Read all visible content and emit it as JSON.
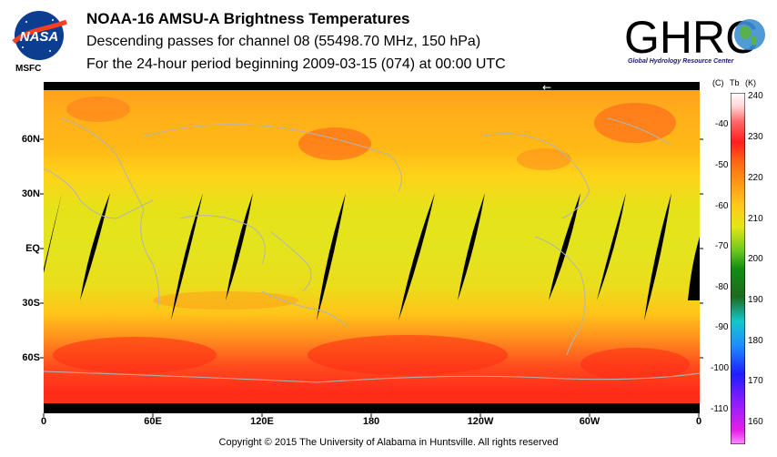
{
  "header": {
    "title": "NOAA-16 AMSU-A Brightness Temperatures",
    "subtitle": "Descending passes for channel 08 (55498.70 MHz, 150 hPa)",
    "period": "For the 24-hour period beginning 2009-03-15 (074) at 00:00 UTC"
  },
  "logos": {
    "nasa_mark": "NASA",
    "nasa_label": "MSFC",
    "ghrc_mark": "GHRC",
    "ghrc_sub": "Global Hydrology Resource Center"
  },
  "map": {
    "lat_labels": [
      "60N",
      "30N",
      "EQ",
      "30S",
      "60S"
    ],
    "lon_labels": [
      "0",
      "60E",
      "120E",
      "180",
      "120W",
      "60W",
      "0"
    ],
    "direction_arrow": "←",
    "colors": {
      "orbit_gap": "#000000",
      "coastline": "#b4b4b4"
    }
  },
  "colorbar": {
    "unit_c": "(C)",
    "label": "Tb",
    "unit_k": "(K)",
    "kelvin_ticks": [
      "240",
      "230",
      "220",
      "210",
      "200",
      "190",
      "180",
      "170",
      "160"
    ],
    "celsius_ticks": [
      "-40",
      "-50",
      "-60",
      "-70",
      "-80",
      "-90",
      "-100",
      "-110"
    ]
  },
  "footer": {
    "copyright": "Copyright © 2015 The University of Alabama in Huntsville.  All rights reserved"
  }
}
